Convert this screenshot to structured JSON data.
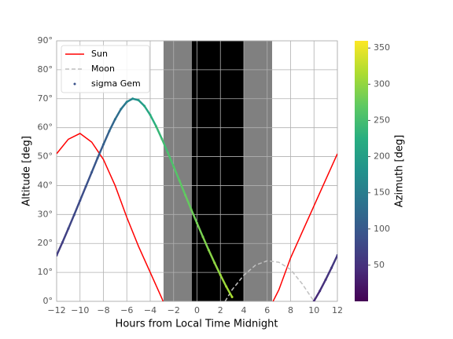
{
  "chart_data": {
    "type": "scatter",
    "xlabel": "Hours from Local Time Midnight",
    "ylabel": "Altitude [deg]",
    "xlim": [
      -12,
      12
    ],
    "ylim": [
      0,
      90
    ],
    "xticks": [
      {
        "value": -12,
        "label": "−12"
      },
      {
        "value": -10,
        "label": "−10"
      },
      {
        "value": -8,
        "label": "−8"
      },
      {
        "value": -6,
        "label": "−6"
      },
      {
        "value": -4,
        "label": "−4"
      },
      {
        "value": -2,
        "label": "−2"
      },
      0,
      2,
      4,
      6,
      8,
      10,
      12
    ],
    "yticks": [
      {
        "value": 0,
        "label": "0°"
      },
      {
        "value": 10,
        "label": "10°"
      },
      {
        "value": 20,
        "label": "20°"
      },
      {
        "value": 30,
        "label": "30°"
      },
      {
        "value": 40,
        "label": "40°"
      },
      {
        "value": 50,
        "label": "50°"
      },
      {
        "value": 60,
        "label": "60°"
      },
      {
        "value": 70,
        "label": "70°"
      },
      {
        "value": 80,
        "label": "80°"
      },
      {
        "value": 90,
        "label": "90°"
      }
    ],
    "grid": true,
    "legend": "upper left",
    "shaded_regions": [
      {
        "start": -2.86,
        "end": -0.44,
        "color": "#808080"
      },
      {
        "start": -0.44,
        "end": 4.0,
        "color": "#000000"
      },
      {
        "start": 4.0,
        "end": 6.42,
        "color": "#808080"
      }
    ],
    "colorbar": {
      "label": "Azimuth [deg]",
      "colormap": "viridis",
      "clim": [
        0,
        360
      ],
      "ticks": [
        50,
        100,
        150,
        200,
        250,
        300,
        350
      ]
    },
    "series": [
      {
        "name": "Sun",
        "kind": "line",
        "color": "#ff0000",
        "x": [
          -12,
          -11,
          -10,
          -9,
          -8,
          -7,
          -6,
          -5,
          -4,
          -3,
          -2.9,
          0,
          6.5,
          7,
          8,
          9,
          10,
          11,
          12
        ],
        "values": [
          51,
          56,
          58,
          55,
          49,
          40,
          29,
          19,
          10,
          1,
          0,
          null,
          0,
          4,
          15,
          24,
          33,
          42,
          51
        ]
      },
      {
        "name": "Moon",
        "kind": "dashed",
        "color": "#c0c0c0",
        "x": [
          2.4,
          3,
          4,
          5,
          6,
          7,
          8,
          9,
          10
        ],
        "values": [
          0,
          4,
          9,
          12.5,
          14,
          13.5,
          11,
          6,
          0
        ]
      },
      {
        "name": "sigma Gem",
        "kind": "points",
        "color": "#3b528b",
        "x": [
          -12,
          -11.5,
          -11,
          -10.5,
          -10,
          -9.5,
          -9,
          -8.5,
          -8,
          -7.5,
          -7,
          -6.5,
          -6,
          -5.5,
          -5,
          -4.5,
          -4,
          -3.5,
          -3,
          -2.5,
          -2,
          -1.5,
          -1,
          -0.5,
          0,
          0.5,
          1,
          1.5,
          2,
          2.5,
          3,
          10,
          10.5,
          11,
          11.5,
          12
        ],
        "values": [
          15.9,
          20.4,
          25.1,
          29.9,
          34.8,
          39.7,
          44.6,
          49.5,
          54.2,
          58.8,
          62.9,
          66.4,
          68.9,
          70.0,
          69.5,
          67.5,
          64.4,
          60.5,
          56.1,
          51.4,
          46.6,
          41.7,
          36.7,
          31.8,
          27.0,
          22.3,
          17.7,
          13.3,
          9.1,
          5.1,
          1.5,
          0.1,
          3.6,
          7.5,
          11.6,
          15.9
        ],
        "azimuth": [
          64.0,
          69.0,
          74.1,
          79.2,
          84.3,
          90.0,
          95.7,
          102.4,
          109.5,
          118.5,
          128.7,
          141.7,
          157.7,
          176.2,
          195.1,
          212.3,
          226.5,
          237.8,
          247.2,
          255.2,
          261.8,
          268.0,
          273.5,
          278.9,
          283.9,
          289.0,
          293.9,
          299.0,
          304.1,
          309.4,
          314.9,
          42.9,
          48.3,
          53.8,
          58.9,
          64.0
        ]
      }
    ]
  }
}
